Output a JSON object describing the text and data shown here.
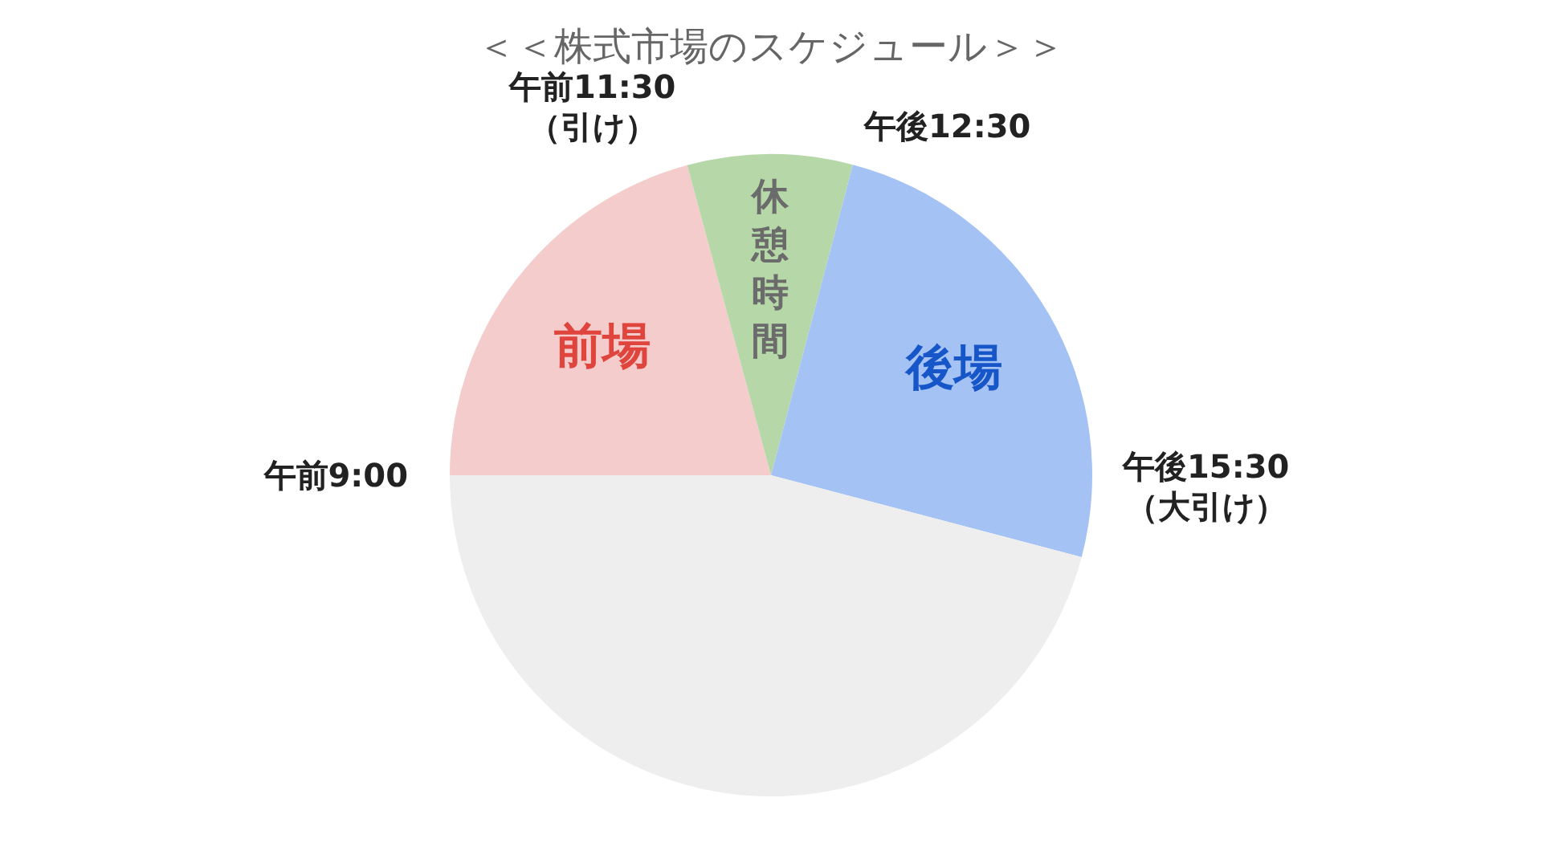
{
  "chart_data": {
    "type": "pie",
    "title": "＜＜株式市場のスケジュール＞＞",
    "categories": [
      "前場",
      "休憩時間",
      "後場",
      null
    ],
    "values": [
      20.8,
      8.3,
      25,
      45.9
    ],
    "colors": [
      "#f4cccc",
      "#b6d7a8",
      "#a4c2f4",
      "#eeeeee"
    ],
    "annotations": [
      "午前9:00",
      "午前11:30\n（引け）",
      "午後12:30",
      "午後15:30\n（大引け）"
    ]
  }
}
